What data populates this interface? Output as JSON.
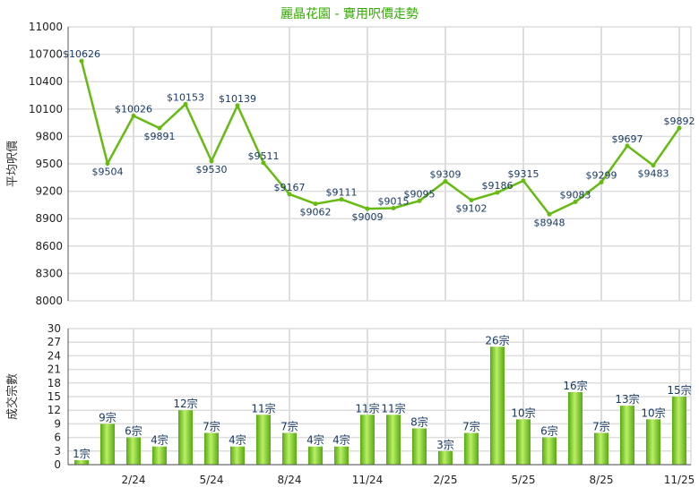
{
  "title": "麗晶花園 - 實用呎價走勢",
  "colors": {
    "line": "#66bb11",
    "bar_light": "#aadd55",
    "bar_dark": "#55aa11",
    "label": "#1a3a66",
    "title": "#33aa00",
    "grid": "#dddddd"
  },
  "chart_data": [
    {
      "type": "line",
      "ylabel": "平均呎價",
      "ylim": [
        8000,
        11000
      ],
      "yticks": [
        8000,
        8300,
        8600,
        8900,
        9200,
        9500,
        9800,
        10100,
        10400,
        10700,
        11000
      ],
      "grid": true,
      "values": [
        10626,
        9504,
        10026,
        9891,
        10153,
        9530,
        10139,
        9511,
        9167,
        9062,
        9111,
        9009,
        9015,
        9095,
        9309,
        9102,
        9186,
        9315,
        8948,
        9083,
        9299,
        9697,
        9483,
        9892
      ],
      "data_labels": [
        "$10626",
        "$9504",
        "$10026",
        "$9891",
        "$10153",
        "$9530",
        "$10139",
        "$9511",
        "$9167",
        "$9062",
        "$9111",
        "$9009",
        "$9015",
        "$9095",
        "$9309",
        "$9102",
        "$9186",
        "$9315",
        "$8948",
        "$9083",
        "$9299",
        "$9697",
        "$9483",
        "$9892"
      ]
    },
    {
      "type": "bar",
      "ylabel": "成交宗數",
      "ylim": [
        0,
        30
      ],
      "yticks": [
        0,
        3,
        6,
        9,
        12,
        15,
        18,
        21,
        24,
        27,
        30
      ],
      "grid": true,
      "values": [
        1,
        9,
        6,
        4,
        12,
        7,
        4,
        11,
        7,
        4,
        4,
        11,
        11,
        8,
        3,
        7,
        26,
        10,
        6,
        16,
        7,
        13,
        10,
        15
      ],
      "data_labels": [
        "1宗",
        "9宗",
        "6宗",
        "4宗",
        "12宗",
        "7宗",
        "4宗",
        "11宗",
        "7宗",
        "4宗",
        "4宗",
        "11宗",
        "11宗",
        "8宗",
        "3宗",
        "7宗",
        "26宗",
        "10宗",
        "6宗",
        "16宗",
        "7宗",
        "13宗",
        "10宗",
        "15宗"
      ],
      "xtick_labels": [
        {
          "index": 2,
          "label": "2/24"
        },
        {
          "index": 5,
          "label": "5/24"
        },
        {
          "index": 8,
          "label": "8/24"
        },
        {
          "index": 11,
          "label": "11/24"
        },
        {
          "index": 14,
          "label": "2/25"
        },
        {
          "index": 17,
          "label": "5/25"
        },
        {
          "index": 20,
          "label": "8/25"
        },
        {
          "index": 23,
          "label": "11/25"
        }
      ]
    }
  ]
}
